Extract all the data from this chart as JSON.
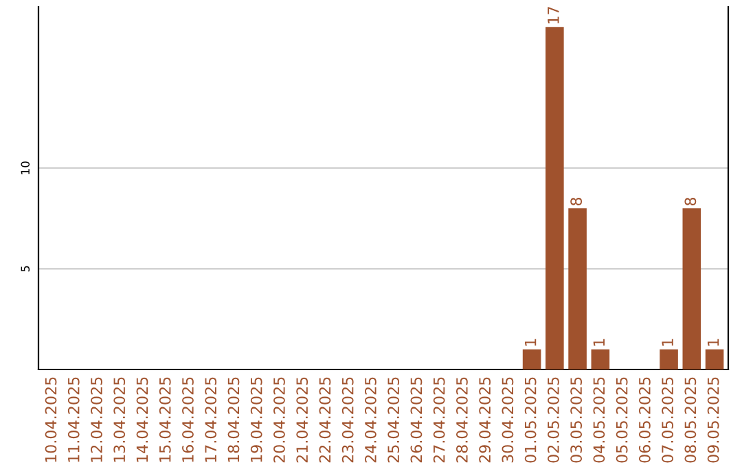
{
  "chart_data": {
    "type": "bar",
    "categories": [
      "10.04.2025",
      "11.04.2025",
      "12.04.2025",
      "13.04.2025",
      "14.04.2025",
      "15.04.2025",
      "16.04.2025",
      "17.04.2025",
      "18.04.2025",
      "19.04.2025",
      "20.04.2025",
      "21.04.2025",
      "22.04.2025",
      "23.04.2025",
      "24.04.2025",
      "25.04.2025",
      "26.04.2025",
      "27.04.2025",
      "28.04.2025",
      "29.04.2025",
      "30.04.2025",
      "01.05.2025",
      "02.05.2025",
      "03.05.2025",
      "04.05.2025",
      "05.05.2025",
      "06.05.2025",
      "07.05.2025",
      "08.05.2025",
      "09.05.2025"
    ],
    "values": [
      0,
      0,
      0,
      0,
      0,
      0,
      0,
      0,
      0,
      0,
      0,
      0,
      0,
      0,
      0,
      0,
      0,
      0,
      0,
      0,
      0,
      1,
      17,
      8,
      1,
      0,
      0,
      1,
      8,
      1
    ],
    "value_labels": [
      null,
      null,
      null,
      null,
      null,
      null,
      null,
      null,
      null,
      null,
      null,
      null,
      null,
      null,
      null,
      null,
      null,
      null,
      null,
      null,
      null,
      "1",
      "17",
      "8",
      "1",
      null,
      null,
      "1",
      "8",
      "1"
    ],
    "color": "#a0522d",
    "ylim": [
      0,
      18
    ],
    "yticks": [
      5,
      10
    ],
    "grid": "y"
  }
}
